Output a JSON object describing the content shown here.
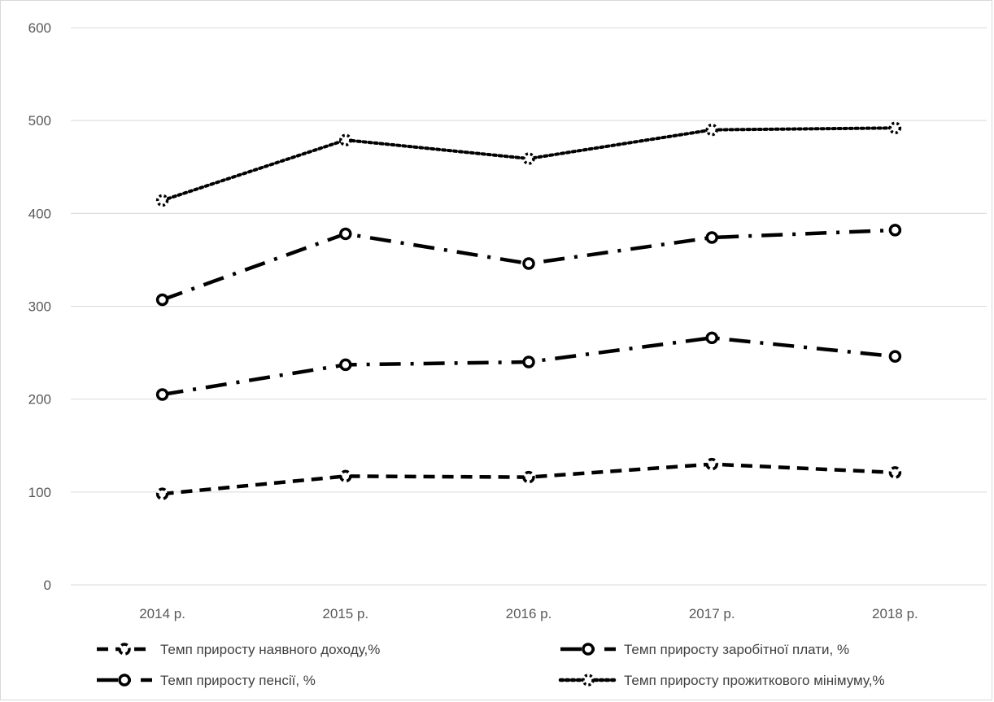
{
  "chart_data": {
    "type": "line",
    "title": "",
    "xlabel": "",
    "ylabel": "",
    "categories": [
      "2014 р.",
      "2015 р.",
      "2016 р.",
      "2017 р.",
      "2018 р."
    ],
    "ylim": [
      0,
      600
    ],
    "yticks": [
      0,
      100,
      200,
      300,
      400,
      500,
      600
    ],
    "grid": true,
    "legend_position": "bottom",
    "series": [
      {
        "name": "Темп приросту наявного доходу,%",
        "values": [
          98,
          117,
          116,
          130,
          121
        ],
        "line_style": "dashed",
        "color": "#000000"
      },
      {
        "name": "Темп приросту заробітної плати, %",
        "values": [
          205,
          237,
          240,
          266,
          246
        ],
        "line_style": "long-dash-dot",
        "color": "#000000"
      },
      {
        "name": "Темп приросту пенсії, %",
        "values": [
          307,
          378,
          346,
          374,
          382
        ],
        "line_style": "long-dash-dot",
        "color": "#000000"
      },
      {
        "name": "Темп приросту прожиткового мінімуму,%",
        "values": [
          414,
          479,
          459,
          490,
          492
        ],
        "line_style": "dotted",
        "color": "#000000"
      }
    ],
    "colors": {
      "gridline": "#d9d9d9",
      "tick_text": "#595959",
      "legend_text": "#404040"
    }
  }
}
